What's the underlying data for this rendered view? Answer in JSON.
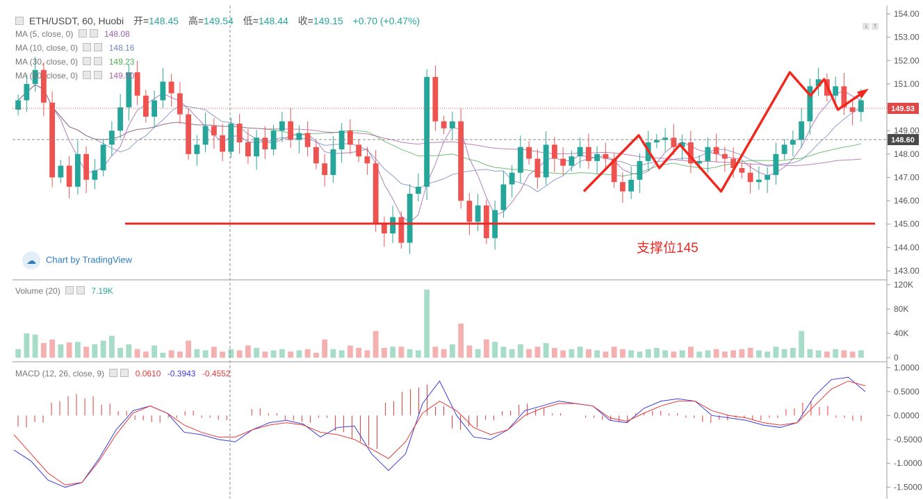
{
  "header": {
    "symbol": "ETH/USDT, 60, Huobi",
    "open_label": "开",
    "open_value": "148.45",
    "high_label": "高",
    "high_value": "149.54",
    "low_label": "低",
    "low_value": "148.44",
    "close_label": "收",
    "close_value": "149.15",
    "change": "+0.70 (+0.47%)"
  },
  "studies": {
    "ma5": {
      "label": "MA (5, close, 0)",
      "value": "148.08",
      "color": "#9c5fb0"
    },
    "ma10": {
      "label": "MA (10, close, 0)",
      "value": "148.16",
      "color": "#6f86c4"
    },
    "ma30": {
      "label": "MA (30, close, 0)",
      "value": "149.23",
      "color": "#4caf50"
    },
    "ma60": {
      "label": "MA (60, close, 0)",
      "value": "149.50",
      "color": "#b05fa6"
    },
    "volume": {
      "label": "Volume (20)",
      "value": "7.19K"
    },
    "macd": {
      "label": "MACD (12, 26, close, 9)",
      "hist": "0.0610",
      "macd": "-0.3943",
      "signal": "-0.4552"
    }
  },
  "watermark": "Chart by TradingView",
  "annotation": "支撑位145",
  "colors": {
    "up": "#26a69a",
    "down": "#ef5350",
    "support": "#e52b26",
    "macd_line": "#3b3bdc",
    "signal_line": "#e53935"
  },
  "chart_data": [
    {
      "type": "candlestick",
      "title": "ETH/USDT, 60, Huobi",
      "y_ticks": [
        "154.00",
        "153.00",
        "152.00",
        "151.00",
        "150.00",
        "149.00",
        "148.00",
        "147.00",
        "146.00",
        "145.00",
        "144.00",
        "143.00"
      ],
      "ylim": [
        142.6,
        154.3
      ],
      "last_price": "149.93",
      "crosshair_price": "148.60",
      "support_level": 145.0,
      "support_label": "支撑位145",
      "closes": [
        150.3,
        151.0,
        151.6,
        150.2,
        147.0,
        147.5,
        146.6,
        148.0,
        146.9,
        147.3,
        148.4,
        149.0,
        150.0,
        151.5,
        150.5,
        149.6,
        150.3,
        151.1,
        150.6,
        149.7,
        148.0,
        148.4,
        149.2,
        148.8,
        148.1,
        149.3,
        148.5,
        147.9,
        148.7,
        148.2,
        149.0,
        149.4,
        148.6,
        148.9,
        148.3,
        147.6,
        147.1,
        148.2,
        149.0,
        148.4,
        147.9,
        147.6,
        145.0,
        144.6,
        145.3,
        144.2,
        146.3,
        146.6,
        151.3,
        149.4,
        149.1,
        149.4,
        146.0,
        145.1,
        145.8,
        144.4,
        145.6,
        146.7,
        147.2,
        148.3,
        147.8,
        147.0,
        148.4,
        147.8,
        147.5,
        147.9,
        148.3,
        147.7,
        148.0,
        147.8,
        146.8,
        146.4,
        146.9,
        147.7,
        148.5,
        148.6,
        148.7,
        148.3,
        148.5,
        147.6,
        147.7,
        148.3,
        148.0,
        147.8,
        147.4,
        147.2,
        146.8,
        146.9,
        147.1,
        148.0,
        148.4,
        148.6,
        149.4,
        150.9,
        151.2,
        150.5,
        150.9,
        150.0,
        149.8,
        150.3
      ],
      "volume_yticks": [
        "120K",
        "80K",
        "40K",
        "0"
      ],
      "volumes": [
        14,
        40,
        38,
        24,
        30,
        22,
        25,
        26,
        18,
        22,
        28,
        36,
        16,
        22,
        14,
        10,
        20,
        8,
        12,
        10,
        28,
        14,
        12,
        18,
        10,
        14,
        12,
        20,
        16,
        10,
        12,
        14,
        10,
        12,
        14,
        8,
        30,
        14,
        12,
        20,
        16,
        12,
        44,
        16,
        18,
        18,
        14,
        12,
        112,
        18,
        14,
        22,
        56,
        20,
        14,
        30,
        26,
        18,
        14,
        22,
        14,
        18,
        24,
        16,
        12,
        14,
        18,
        14,
        12,
        10,
        18,
        14,
        12,
        10,
        14,
        16,
        12,
        10,
        12,
        18,
        10,
        12,
        14,
        10,
        12,
        14,
        16,
        12,
        10,
        18,
        14,
        16,
        44,
        14,
        12,
        10,
        14,
        12,
        10,
        12
      ],
      "macd_yticks": [
        "1.0000",
        "0.5000",
        "0.0000",
        "-0.5000",
        "-1.0000",
        "-1.5000"
      ],
      "macd_ylim": [
        -1.65,
        1.05
      ],
      "macd_line": [
        -0.72,
        -0.95,
        -1.35,
        -1.5,
        -1.4,
        -0.9,
        -0.3,
        0.1,
        0.2,
        0.05,
        -0.35,
        -0.4,
        -0.5,
        -0.55,
        -0.3,
        -0.15,
        -0.1,
        -0.18,
        -0.45,
        -0.25,
        -0.22,
        -0.8,
        -1.15,
        -0.8,
        0.25,
        0.72,
        0.0,
        -0.45,
        -0.5,
        -0.3,
        0.1,
        0.2,
        0.3,
        0.25,
        0.2,
        -0.1,
        -0.15,
        0.15,
        0.3,
        0.35,
        0.3,
        0.0,
        -0.05,
        -0.1,
        -0.2,
        -0.25,
        -0.15,
        0.4,
        0.75,
        0.8,
        0.5
      ],
      "signal_line": [
        -0.4,
        -0.8,
        -1.2,
        -1.45,
        -1.4,
        -0.95,
        -0.4,
        0.05,
        0.2,
        0.05,
        -0.2,
        -0.35,
        -0.45,
        -0.45,
        -0.3,
        -0.2,
        -0.15,
        -0.2,
        -0.35,
        -0.4,
        -0.5,
        -0.7,
        -0.9,
        -0.55,
        0.05,
        0.3,
        0.1,
        -0.25,
        -0.4,
        -0.3,
        0.0,
        0.15,
        0.25,
        0.25,
        0.2,
        -0.05,
        -0.12,
        0.05,
        0.2,
        0.3,
        0.3,
        0.1,
        0.0,
        -0.05,
        -0.15,
        -0.2,
        -0.15,
        0.2,
        0.55,
        0.72,
        0.62
      ],
      "macd_hist": [
        -0.25,
        -0.15,
        0.3,
        0.45,
        0.4,
        0.25,
        0.1,
        -0.1,
        -0.15,
        -0.05,
        0.1,
        -0.05,
        -0.1,
        0.0,
        0.15,
        0.05,
        -0.1,
        -0.15,
        -0.05,
        -0.35,
        -0.55,
        -0.7,
        0.3,
        0.55,
        0.65,
        0.2,
        -0.3,
        -0.25,
        -0.1,
        0.1,
        0.25,
        0.15,
        0.05,
        0.0,
        -0.05,
        -0.1,
        -0.15,
        0.05,
        0.1,
        0.05,
        -0.05,
        -0.15,
        -0.1,
        -0.05,
        -0.1,
        -0.05,
        0.15,
        0.3,
        0.2,
        -0.05,
        -0.12
      ]
    }
  ]
}
